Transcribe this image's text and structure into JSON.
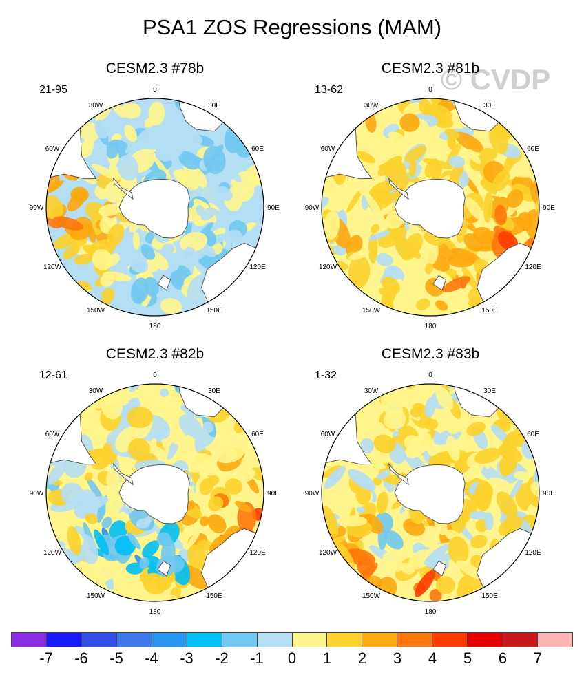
{
  "figure": {
    "title": "PSA1 ZOS Regressions (MAM)",
    "watermark": "© CVDP"
  },
  "lon_labels": [
    "0",
    "30E",
    "60E",
    "90E",
    "120E",
    "150E",
    "180",
    "150W",
    "120W",
    "90W",
    "60W",
    "30W"
  ],
  "panels": [
    {
      "title": "CESM2.3 #78b",
      "range": "21-95",
      "mean_level": -0.3,
      "warm_sector": "west"
    },
    {
      "title": "CESM2.3 #81b",
      "range": "13-62",
      "mean_level": 0.8,
      "warm_sector": "south-east"
    },
    {
      "title": "CESM2.3 #82b",
      "range": "12-61",
      "mean_level": 0.2,
      "warm_sector": "east"
    },
    {
      "title": "CESM2.3 #83b",
      "range": "1-32",
      "mean_level": 0.6,
      "warm_sector": "south"
    }
  ],
  "colorbar": {
    "ticks": [
      "-7",
      "-6",
      "-5",
      "-4",
      "-3",
      "-2",
      "-1",
      "0",
      "1",
      "2",
      "3",
      "4",
      "5",
      "6",
      "7"
    ],
    "colors": [
      "#8b2be2",
      "#1a1aff",
      "#3050e8",
      "#3c78e8",
      "#2896f0",
      "#00bff5",
      "#70c8f0",
      "#b4def4",
      "#fff58c",
      "#fcd22c",
      "#fca810",
      "#fc780c",
      "#ff3c00",
      "#e60000",
      "#c81a1a",
      "#ffb4b4"
    ]
  }
}
